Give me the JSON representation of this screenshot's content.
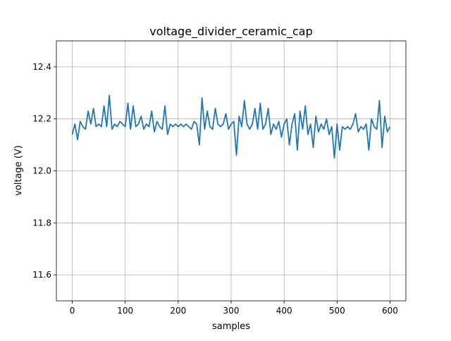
{
  "chart_data": {
    "type": "line",
    "title": "voltage_divider_ceramic_cap",
    "xlabel": "samples",
    "ylabel": "voltage (V)",
    "xlim": [
      -30,
      630
    ],
    "ylim": [
      11.5,
      12.5
    ],
    "xticks": [
      0,
      100,
      200,
      300,
      400,
      500,
      600
    ],
    "xtick_labels": [
      "0",
      "100",
      "200",
      "300",
      "400",
      "500",
      "600"
    ],
    "yticks": [
      11.6,
      11.8,
      12.0,
      12.2,
      12.4
    ],
    "ytick_labels": [
      "11.6",
      "11.8",
      "12.0",
      "12.2",
      "12.4"
    ],
    "grid": true,
    "legend": "none",
    "series": [
      {
        "color": "#1f77b4",
        "x": [
          0,
          5,
          10,
          15,
          20,
          25,
          30,
          35,
          40,
          45,
          50,
          55,
          60,
          65,
          70,
          75,
          80,
          85,
          90,
          95,
          100,
          105,
          110,
          115,
          120,
          125,
          130,
          135,
          140,
          145,
          150,
          155,
          160,
          165,
          170,
          175,
          180,
          185,
          190,
          195,
          200,
          205,
          210,
          215,
          220,
          225,
          230,
          235,
          240,
          245,
          250,
          255,
          260,
          265,
          270,
          275,
          280,
          285,
          290,
          295,
          300,
          305,
          310,
          315,
          320,
          325,
          330,
          335,
          340,
          345,
          350,
          355,
          360,
          365,
          370,
          375,
          380,
          385,
          390,
          395,
          400,
          405,
          410,
          415,
          420,
          425,
          430,
          435,
          440,
          445,
          450,
          455,
          460,
          465,
          470,
          475,
          480,
          485,
          490,
          495,
          500,
          505,
          510,
          515,
          520,
          525,
          530,
          535,
          540,
          545,
          550,
          555,
          560,
          565,
          570,
          575,
          580,
          585,
          590,
          595,
          600
        ],
        "y": [
          12.14,
          12.18,
          12.12,
          12.19,
          12.17,
          12.16,
          12.23,
          12.18,
          12.24,
          12.17,
          12.18,
          12.17,
          12.25,
          12.17,
          12.29,
          12.16,
          12.18,
          12.17,
          12.19,
          12.18,
          12.17,
          12.26,
          12.16,
          12.25,
          12.17,
          12.18,
          12.21,
          12.16,
          12.18,
          12.17,
          12.23,
          12.15,
          12.19,
          12.17,
          12.16,
          12.25,
          12.14,
          12.18,
          12.17,
          12.18,
          12.17,
          12.18,
          12.17,
          12.18,
          12.17,
          12.16,
          12.19,
          12.18,
          12.1,
          12.28,
          12.16,
          12.23,
          12.17,
          12.16,
          12.24,
          12.18,
          12.17,
          12.18,
          12.22,
          12.16,
          12.18,
          12.19,
          12.06,
          12.21,
          12.17,
          12.27,
          12.18,
          12.16,
          12.18,
          12.24,
          12.16,
          12.26,
          12.16,
          12.18,
          12.24,
          12.14,
          12.18,
          12.16,
          12.19,
          12.13,
          12.18,
          12.2,
          12.1,
          12.18,
          12.22,
          12.08,
          12.23,
          12.16,
          12.25,
          12.14,
          12.18,
          12.09,
          12.21,
          12.15,
          12.18,
          12.16,
          12.2,
          12.14,
          12.17,
          12.05,
          12.18,
          12.08,
          12.17,
          12.16,
          12.17,
          12.16,
          12.18,
          12.22,
          12.15,
          12.17,
          12.16,
          12.18,
          12.08,
          12.2,
          12.17,
          12.16,
          12.27,
          12.09,
          12.21,
          12.15,
          12.17
        ]
      }
    ]
  }
}
